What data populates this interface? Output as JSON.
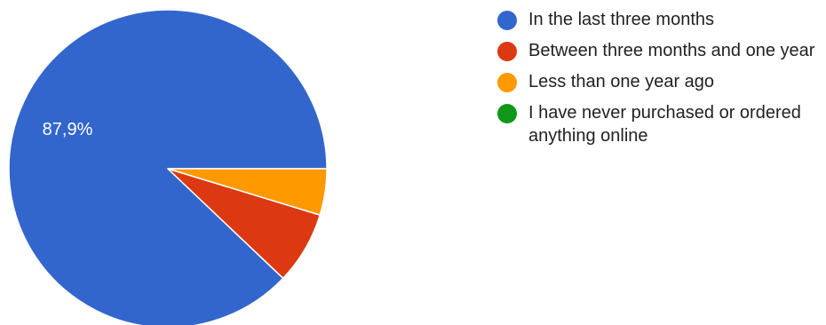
{
  "chart_data": {
    "type": "pie",
    "labels": [
      "In the last three months",
      "Between three months and one year",
      "Less than one year ago",
      "I have never purchased or ordered anything online"
    ],
    "values": [
      87.9,
      7.4,
      4.7,
      0.0
    ],
    "value_labels": [
      "87,9%",
      "",
      "",
      ""
    ],
    "colors": [
      "#3366cc",
      "#dc3912",
      "#ff9900",
      "#109618"
    ],
    "legend_position": "right",
    "title": ""
  }
}
